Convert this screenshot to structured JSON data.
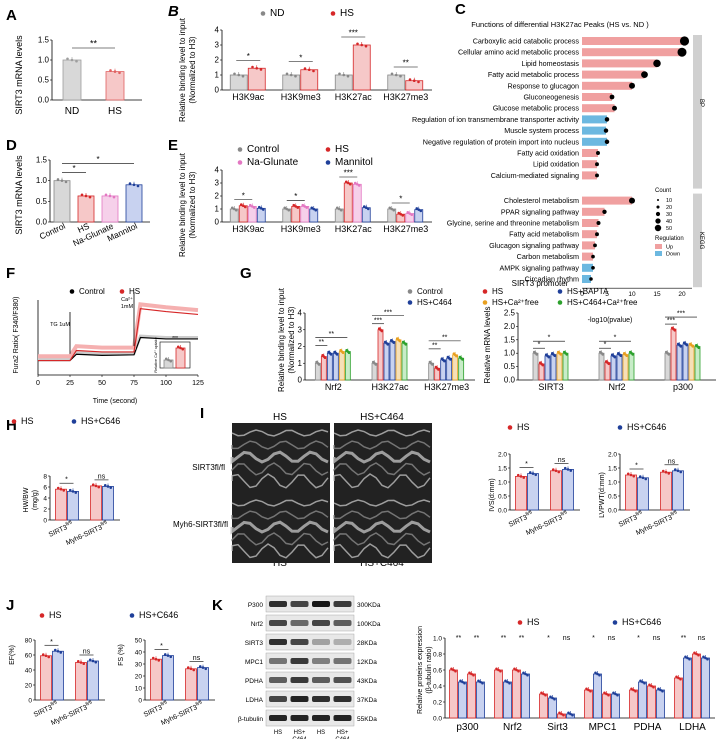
{
  "panels": {
    "A": {
      "letter": "A",
      "ylabel": "SIRT3 mRNA levels",
      "sig": "**",
      "chart_data": {
        "type": "bar",
        "categories": [
          "ND",
          "HS"
        ],
        "values": [
          1.0,
          0.71
        ],
        "ylim": [
          0,
          1.5
        ],
        "yticks": [
          "0.0",
          "0.5",
          "1.0",
          "1.5"
        ],
        "colors": [
          "#9e9e9e",
          "#e06060"
        ]
      }
    },
    "B": {
      "letter": "B",
      "ylabel": "Relative binding level to input",
      "ylabel2": "(Normalized to H3)",
      "legend": [
        {
          "name": "ND",
          "color": "#888888"
        },
        {
          "name": "HS",
          "color": "#d62728"
        }
      ],
      "chart_data": {
        "type": "bar",
        "categories": [
          "H3K9ac",
          "H3K9me3",
          "H3K27ac",
          "H3K27me3"
        ],
        "series": [
          {
            "name": "ND",
            "values": [
              1.0,
              1.0,
              1.0,
              1.0
            ]
          },
          {
            "name": "HS",
            "values": [
              1.45,
              1.35,
              3.0,
              0.62
            ]
          }
        ],
        "ylim": [
          0,
          4
        ],
        "yticks": [
          "0",
          "1",
          "2",
          "3",
          "4"
        ],
        "sig": [
          "*",
          "*",
          "***",
          "**"
        ]
      }
    },
    "C": {
      "letter": "C",
      "title": "Functions of differential H3K27ac Peaks  (HS vs. ND )",
      "xlabel": "-log10(pvalue)",
      "xticks": [
        "0",
        "5",
        "10",
        "15",
        "20"
      ],
      "bp_label": "BP",
      "kegg_label": "KEGG",
      "count_legend_title": "Count",
      "count_legend": [
        "10",
        "20",
        "30",
        "40",
        "50"
      ],
      "reg_legend_title": "Regulation",
      "reg_legend": [
        {
          "name": "Up",
          "color": "#f0a0a0"
        },
        {
          "name": "Down",
          "color": "#6cb8e0"
        }
      ],
      "chart_data": {
        "type": "bar",
        "bp_terms": [
          "Carboxylic acid catabolic process",
          "Cellular amino acid metabolic process",
          "Lipid homeostasis",
          "Fatty acid metabolic process",
          "Response to glucagon",
          "Gluconeogenesis",
          "Glucose metabolic process",
          "Regulation of ion transmembrane transporter activity",
          "Muscle system process",
          "Negative regulation of protein import into nucleus",
          "Fatty acid oxidation",
          "Lipid oxidation",
          "Calcium-mediated signaling"
        ],
        "bp_values": [
          20.5,
          20.0,
          15.0,
          12.5,
          10.0,
          6.0,
          6.5,
          5.0,
          4.8,
          5.0,
          3.2,
          3.0,
          3.0
        ],
        "bp_reg": [
          "Up",
          "Up",
          "Up",
          "Up",
          "Up",
          "Up",
          "Up",
          "Down",
          "Down",
          "Down",
          "Up",
          "Up",
          "Up"
        ],
        "kegg_terms": [
          "Cholesterol metabolism",
          "PPAR signaling pathway",
          "Glycine, serine and threonine metabolism",
          "Fatty acid metabolism",
          "Glucagon signaling pathway",
          "Carbon metabolism",
          "AMPK signaling pathway",
          "Circadian rhythm"
        ],
        "kegg_values": [
          10.0,
          4.5,
          3.3,
          3.0,
          2.6,
          2.2,
          2.2,
          1.8
        ],
        "kegg_reg": [
          "Up",
          "Up",
          "Up",
          "Up",
          "Up",
          "Up",
          "Down",
          "Down"
        ],
        "xlim": [
          0,
          22
        ]
      }
    },
    "D": {
      "letter": "D",
      "ylabel": "SIRT3 mRNA levels",
      "chart_data": {
        "type": "bar",
        "categories": [
          "Control",
          "HS",
          "Na-Glunate",
          "Mannitol"
        ],
        "values": [
          1.0,
          0.63,
          0.63,
          0.9
        ],
        "ylim": [
          0,
          1.5
        ],
        "yticks": [
          "0.0",
          "0.5",
          "1.0",
          "1.5"
        ],
        "sig": [
          "*",
          "*"
        ]
      }
    },
    "E": {
      "letter": "E",
      "ylabel": "Relative binding level to input",
      "ylabel2": "(Normalized to H3)",
      "legend": [
        {
          "name": "Control",
          "color": "#888888"
        },
        {
          "name": "HS",
          "color": "#d62728"
        },
        {
          "name": "Na-Glunate",
          "color": "#e377c2"
        },
        {
          "name": "Mannitol",
          "color": "#1f3f99"
        }
      ],
      "chart_data": {
        "type": "bar",
        "categories": [
          "H3K9ac",
          "H3K9me3",
          "H3K27ac",
          "H3K27me3"
        ],
        "series": [
          {
            "name": "Control",
            "values": [
              1.0,
              1.0,
              1.0,
              1.0
            ]
          },
          {
            "name": "HS",
            "values": [
              1.25,
              1.2,
              3.0,
              0.6
            ]
          },
          {
            "name": "Na-Glunate",
            "values": [
              1.2,
              1.2,
              2.9,
              0.65
            ]
          },
          {
            "name": "Mannitol",
            "values": [
              1.05,
              1.0,
              1.1,
              0.95
            ]
          }
        ],
        "ylim": [
          0,
          4
        ],
        "yticks": [
          "0",
          "1",
          "2",
          "3",
          "4"
        ],
        "sig": [
          "*",
          "*",
          "***",
          "*"
        ]
      }
    },
    "F": {
      "letter": "F",
      "ylabel": "Fura2 Ratio( F340/F380)",
      "xlabel": "Time (second)",
      "legend": [
        {
          "name": "Control",
          "color": "#000000"
        },
        {
          "name": "HS",
          "color": "#d62728"
        }
      ],
      "tg_label": "TG 1uM",
      "ca_label": "Ca²⁺",
      "ca_label2": "1mM",
      "inset_ylabel": "Relative Ca²⁺ uptake",
      "inset_sig": "***",
      "chart_data": {
        "type": "line",
        "x": [
          0,
          25,
          30,
          50,
          75,
          80,
          100,
          125
        ],
        "series": [
          {
            "name": "Control",
            "values": [
              0.5,
              0.5,
              0.72,
              0.68,
              0.7,
              1.3,
              1.25,
              1.25
            ]
          },
          {
            "name": "HS",
            "values": [
              0.5,
              0.5,
              0.85,
              0.8,
              0.8,
              2.3,
              2.2,
              2.1
            ]
          }
        ],
        "xlim": [
          0,
          125
        ],
        "xticks": [
          "0",
          "25",
          "50",
          "75",
          "100",
          "125"
        ]
      }
    },
    "G": {
      "letter": "G",
      "ylabel": "Relative binding level to input",
      "ylabel2": "(Normalized to H3)",
      "ylabel_r": "Relative mRNA levels",
      "subtitle": "SIRT3 promoter",
      "legend": [
        {
          "name": "Control",
          "color": "#888888"
        },
        {
          "name": "HS",
          "color": "#d62728"
        },
        {
          "name": "HS+BAPTA",
          "color": "#1f3f99"
        },
        {
          "name": "HS+C464",
          "color": "#1f3f99"
        },
        {
          "name": "HS+Ca²⁺free",
          "color": "#e8a020"
        },
        {
          "name": "HS+C464+Ca²⁺free",
          "color": "#2ca02c"
        }
      ],
      "chart_data": [
        {
          "type": "bar",
          "categories": [
            "Nrf2",
            "H3K27ac",
            "H3K27me3"
          ],
          "series": [
            {
              "name": "Control",
              "values": [
                1.0,
                1.0,
                1.0
              ]
            },
            {
              "name": "HS",
              "values": [
                1.4,
                3.0,
                0.7
              ]
            },
            {
              "name": "HS+BAPTA",
              "values": [
                1.6,
                2.2,
                1.2
              ]
            },
            {
              "name": "HS+C464",
              "values": [
                1.6,
                2.3,
                1.3
              ]
            },
            {
              "name": "HS+Ca²⁺free",
              "values": [
                1.7,
                2.4,
                1.5
              ]
            },
            {
              "name": "HS+C464+Ca²⁺free",
              "values": [
                1.7,
                2.2,
                1.3
              ]
            }
          ],
          "ylim": [
            0,
            4
          ],
          "yticks": [
            "0",
            "1",
            "2",
            "3",
            "4"
          ]
        },
        {
          "type": "bar",
          "categories": [
            "SIRT3",
            "Nrf2",
            "p300"
          ],
          "series": [
            {
              "name": "Control",
              "values": [
                1.0,
                1.0,
                1.0
              ]
            },
            {
              "name": "HS",
              "values": [
                0.6,
                0.65,
                1.9
              ]
            },
            {
              "name": "HS+BAPTA",
              "values": [
                0.9,
                0.9,
                1.3
              ]
            },
            {
              "name": "HS+C464",
              "values": [
                0.95,
                0.95,
                1.35
              ]
            },
            {
              "name": "HS+Ca²⁺free",
              "values": [
                1.0,
                0.95,
                1.3
              ]
            },
            {
              "name": "HS+C464+Ca²⁺free",
              "values": [
                1.0,
                1.0,
                1.25
              ]
            }
          ],
          "ylim": [
            0,
            2.5
          ],
          "yticks": [
            "0.0",
            "0.5",
            "1.0",
            "1.5",
            "2.0",
            "2.5"
          ]
        }
      ]
    },
    "H": {
      "letter": "H",
      "ylabel": "HW/BW",
      "ylabel2": "(mg/g)",
      "legend": [
        {
          "name": "HS",
          "color": "#d62728"
        },
        {
          "name": "HS+C646",
          "color": "#1f3f99"
        }
      ],
      "chart_data": {
        "type": "bar",
        "categories": [
          "SIRT3fl/fl",
          "Myh6-SIRT3fl/fl"
        ],
        "series": [
          {
            "name": "HS",
            "values": [
              5.6,
              6.2
            ]
          },
          {
            "name": "HS+C646",
            "values": [
              5.2,
              6.1
            ]
          }
        ],
        "ylim": [
          0,
          8
        ],
        "yticks": [
          "0",
          "2",
          "4",
          "6",
          "8"
        ],
        "sig": [
          "*",
          "ns"
        ]
      }
    },
    "I": {
      "letter": "I",
      "col_labels": [
        "HS",
        "HS+C464"
      ],
      "row_labels": [
        "SIRT3fl/fl",
        "Myh6-SIRT3fl/fl"
      ],
      "legend": [
        {
          "name": "HS",
          "color": "#d62728"
        },
        {
          "name": "HS+C646",
          "color": "#1f3f99"
        }
      ],
      "ivs": {
        "ylabel": "IVS(d:mm)",
        "chart_data": {
          "type": "bar",
          "categories": [
            "SIRT3fl/fl",
            "Myh6-SIRT3fl/fl"
          ],
          "series": [
            {
              "name": "HS",
              "values": [
                1.2,
                1.4
              ]
            },
            {
              "name": "HS+C646",
              "values": [
                1.3,
                1.45
              ]
            }
          ],
          "ylim": [
            0,
            2.0
          ],
          "yticks": [
            "0.0",
            "0.5",
            "1.0",
            "1.5",
            "2.0"
          ],
          "sig": [
            "*",
            "ns"
          ]
        }
      },
      "lvpwt": {
        "ylabel": "LVPWT(d:mm)",
        "chart_data": {
          "type": "bar",
          "categories": [
            "SIRT3fl/fl",
            "Myh6-SIRT3fl/fl"
          ],
          "series": [
            {
              "name": "HS",
              "values": [
                1.25,
                1.35
              ]
            },
            {
              "name": "HS+C646",
              "values": [
                1.15,
                1.4
              ]
            }
          ],
          "ylim": [
            0,
            2.0
          ],
          "yticks": [
            "0.0",
            "0.5",
            "1.0",
            "1.5",
            "2.0"
          ],
          "sig": [
            "*",
            "ns"
          ]
        }
      }
    },
    "J": {
      "letter": "J",
      "legend": [
        {
          "name": "HS",
          "color": "#d62728"
        },
        {
          "name": "HS+C646",
          "color": "#1f3f99"
        }
      ],
      "ef": {
        "ylabel": "EF(%)",
        "chart_data": {
          "type": "bar",
          "categories": [
            "SIRT3fl/fl",
            "Myh6-SIRT3fl/fl"
          ],
          "series": [
            {
              "name": "HS",
              "values": [
                59,
                50
              ]
            },
            {
              "name": "HS+C646",
              "values": [
                65,
                52
              ]
            }
          ],
          "ylim": [
            0,
            80
          ],
          "yticks": [
            "0",
            "20",
            "40",
            "60",
            "80"
          ],
          "sig": [
            "*",
            "ns"
          ]
        }
      },
      "fs": {
        "ylabel": "FS (%)",
        "chart_data": {
          "type": "bar",
          "categories": [
            "SIRT3fl/fl",
            "Myh6-SIRT3fl/fl"
          ],
          "series": [
            {
              "name": "HS",
              "values": [
                34,
                26
              ]
            },
            {
              "name": "HS+C646",
              "values": [
                37,
                27
              ]
            }
          ],
          "ylim": [
            0,
            50
          ],
          "yticks": [
            "0",
            "10",
            "20",
            "30",
            "40",
            "50"
          ],
          "sig": [
            "*",
            "ns"
          ]
        }
      }
    },
    "K": {
      "letter": "K",
      "ylabel": "Relative proteins expression",
      "ylabel2": "(β-tubulin ratio)",
      "blot_labels": [
        "P300",
        "Nrf2",
        "SIRT3",
        "MPC1",
        "PDHA",
        "LDHA",
        "β-tubulin"
      ],
      "blot_kda": [
        "300KDa",
        "100KDa",
        "28KDa",
        "12KDa",
        "43KDa",
        "37KDa",
        "55KDa"
      ],
      "lanes": [
        "HS",
        "HS+ C464",
        "HS",
        "HS+ C464"
      ],
      "groups": [
        "SIRT3fl/fl",
        "Myh6-SIRT3fl/fl"
      ],
      "legend": [
        {
          "name": "HS",
          "color": "#d62728"
        },
        {
          "name": "HS+C646",
          "color": "#1f3f99"
        }
      ],
      "chart_data": {
        "type": "bar",
        "categories": [
          "p300",
          "Nrf2",
          "Sirt3",
          "MPC1",
          "PDHA",
          "LDHA"
        ],
        "series": [
          {
            "name": "SIRT3fl/fl HS",
            "values": [
              0.6,
              0.6,
              0.3,
              0.35,
              0.35,
              0.5
            ]
          },
          {
            "name": "SIRT3fl/fl HS+C646",
            "values": [
              0.45,
              0.45,
              0.25,
              0.55,
              0.45,
              0.75
            ]
          },
          {
            "name": "Myh6 HS",
            "values": [
              0.55,
              0.6,
              0.05,
              0.3,
              0.4,
              0.8
            ]
          },
          {
            "name": "Myh6 HS+C646",
            "values": [
              0.45,
              0.55,
              0.05,
              0.3,
              0.35,
              0.75
            ]
          }
        ],
        "ylim": [
          0,
          1.0
        ],
        "yticks": [
          "0.0",
          "0.2",
          "0.4",
          "0.6",
          "0.8",
          "1.0"
        ],
        "sig": [
          "**",
          "**",
          "**",
          "**",
          "*",
          "ns",
          "*",
          "ns",
          "*",
          "ns",
          "**",
          "ns"
        ]
      }
    }
  }
}
